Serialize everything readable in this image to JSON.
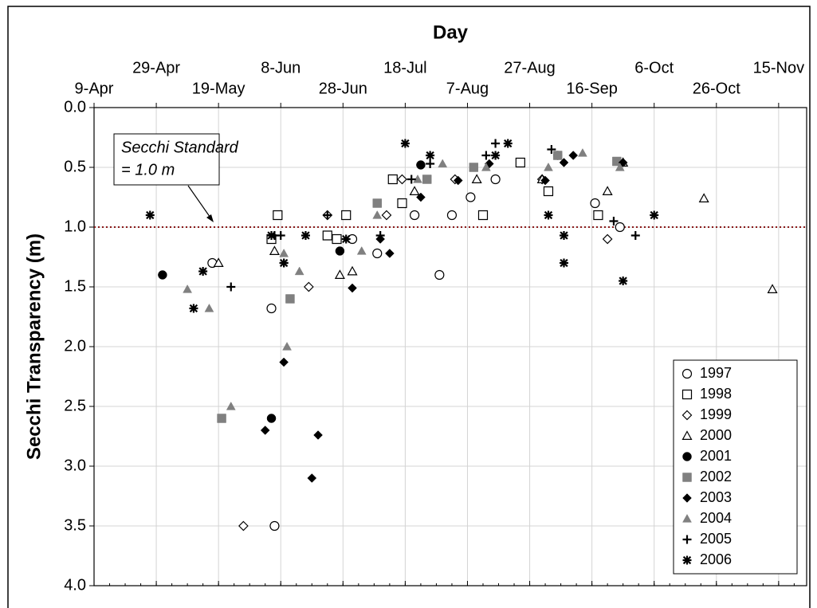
{
  "chart_data": {
    "type": "scatter",
    "title": "Day",
    "y_label": "Secchi Transparency (m)",
    "annotation": [
      "Secchi Standard",
      "= 1.0 m"
    ],
    "reference_line": {
      "value": 1.0,
      "color": "#8b1a1a"
    },
    "xlim": [
      99,
      328
    ],
    "xticks": [
      {
        "value": 99,
        "label": "9-Apr"
      },
      {
        "value": 119,
        "label": "29-Apr"
      },
      {
        "value": 139,
        "label": "19-May"
      },
      {
        "value": 159,
        "label": "8-Jun"
      },
      {
        "value": 179,
        "label": "28-Jun"
      },
      {
        "value": 199,
        "label": "18-Jul"
      },
      {
        "value": 219,
        "label": "7-Aug"
      },
      {
        "value": 239,
        "label": "27-Aug"
      },
      {
        "value": 259,
        "label": "16-Sep"
      },
      {
        "value": 279,
        "label": "6-Oct"
      },
      {
        "value": 299,
        "label": "26-Oct"
      },
      {
        "value": 319,
        "label": "15-Nov"
      }
    ],
    "ylim": [
      0,
      4
    ],
    "y_inverted": true,
    "yticks": [
      {
        "value": 0,
        "label": "0.0"
      },
      0.5,
      {
        "value": 1,
        "label": "1.0"
      },
      1.5,
      {
        "value": 2,
        "label": "2.0"
      },
      2.5,
      {
        "value": 3,
        "label": "3.0"
      },
      3.5,
      {
        "value": 4,
        "label": "4.0"
      }
    ],
    "grid": true,
    "legend": "lower right",
    "series": [
      {
        "name": "1997",
        "color": "#000000",
        "marker": "circle-open",
        "x": [
          137,
          156,
          157,
          182,
          190,
          202,
          210,
          214,
          220,
          228,
          260,
          268
        ],
        "values": [
          1.3,
          1.68,
          3.5,
          1.1,
          1.22,
          0.9,
          1.4,
          0.9,
          0.75,
          0.6,
          0.8,
          1.0
        ]
      },
      {
        "name": "1998",
        "color": "#000000",
        "marker": "square-open",
        "x": [
          156,
          158,
          174,
          177,
          180,
          195,
          198,
          224,
          236,
          245,
          261
        ],
        "values": [
          1.1,
          0.9,
          1.07,
          1.1,
          0.9,
          0.6,
          0.8,
          0.9,
          0.46,
          0.7,
          0.9
        ]
      },
      {
        "name": "1999",
        "color": "#000000",
        "marker": "diamond-open",
        "x": [
          147,
          168,
          174,
          193,
          198,
          215,
          243,
          264
        ],
        "values": [
          3.5,
          1.5,
          0.9,
          0.9,
          0.6,
          0.6,
          0.6,
          1.1
        ]
      },
      {
        "name": "2000",
        "color": "#000000",
        "marker": "triangle-open",
        "x": [
          139,
          157,
          178,
          182,
          202,
          222,
          243,
          264,
          269,
          295,
          317
        ],
        "values": [
          1.3,
          1.2,
          1.4,
          1.37,
          0.7,
          0.6,
          0.6,
          0.7,
          0.46,
          0.76,
          1.52
        ]
      },
      {
        "name": "2001",
        "color": "#000000",
        "marker": "circle-filled",
        "x": [
          121,
          156,
          178,
          204,
          248
        ],
        "values": [
          1.4,
          2.6,
          1.2,
          0.48,
          0.4
        ]
      },
      {
        "name": "2002",
        "color": "#808080",
        "marker": "square-filled",
        "x": [
          140,
          162,
          190,
          206,
          221,
          248,
          267
        ],
        "values": [
          2.6,
          1.6,
          0.8,
          0.6,
          0.5,
          0.4,
          0.45
        ]
      },
      {
        "name": "2003",
        "color": "#000000",
        "marker": "diamond-filled",
        "x": [
          154,
          160,
          169,
          171,
          182,
          191,
          194,
          204,
          216,
          226,
          244,
          250,
          253,
          269
        ],
        "values": [
          2.7,
          2.13,
          3.1,
          2.74,
          1.51,
          1.1,
          1.22,
          0.75,
          0.61,
          0.47,
          0.61,
          0.46,
          0.4,
          0.46
        ]
      },
      {
        "name": "2004",
        "color": "#808080",
        "marker": "triangle-filled",
        "x": [
          129,
          136,
          143,
          160,
          161,
          165,
          185,
          190,
          203,
          211,
          225,
          245,
          256,
          268
        ],
        "values": [
          1.52,
          1.68,
          2.5,
          1.22,
          2.0,
          1.37,
          1.2,
          0.9,
          0.6,
          0.47,
          0.5,
          0.5,
          0.38,
          0.5
        ]
      },
      {
        "name": "2005",
        "color": "#000000",
        "marker": "plus",
        "x": [
          143,
          157,
          159,
          160,
          174,
          191,
          201,
          207,
          225,
          228,
          246,
          266,
          273
        ],
        "values": [
          1.5,
          1.07,
          1.07,
          1.3,
          0.9,
          1.07,
          0.6,
          0.47,
          0.4,
          0.3,
          0.35,
          0.95,
          1.07
        ]
      },
      {
        "name": "2006",
        "color": "#000000",
        "marker": "asterisk",
        "x": [
          117,
          131,
          134,
          156,
          160,
          167,
          180,
          199,
          207,
          228,
          232,
          245,
          250,
          250,
          269,
          279
        ],
        "values": [
          0.9,
          1.68,
          1.37,
          1.07,
          1.3,
          1.07,
          1.1,
          0.3,
          0.4,
          0.4,
          0.3,
          0.9,
          1.07,
          1.3,
          1.45,
          0.9
        ]
      }
    ]
  }
}
